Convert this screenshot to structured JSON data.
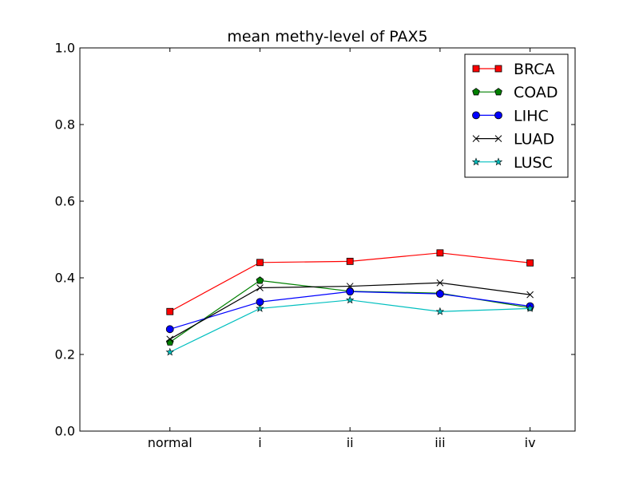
{
  "chart_data": {
    "type": "line",
    "title": "mean methy-level of PAX5",
    "xlabel": "",
    "ylabel": "",
    "categories": [
      "normal",
      "i",
      "ii",
      "iii",
      "iv"
    ],
    "x_range": [
      -1,
      4.5
    ],
    "ylim": [
      0.0,
      1.0
    ],
    "yticks": [
      "0.0",
      "0.2",
      "0.4",
      "0.6",
      "0.8",
      "1.0"
    ],
    "grid": false,
    "legend_position": "top-right",
    "series": [
      {
        "name": "BRCA",
        "color": "#ff0000",
        "marker": "square",
        "values": [
          0.312,
          0.44,
          0.443,
          0.465,
          0.439
        ]
      },
      {
        "name": "COAD",
        "color": "#008000",
        "marker": "pentagon",
        "values": [
          0.232,
          0.393,
          0.365,
          0.36,
          0.322
        ]
      },
      {
        "name": "LIHC",
        "color": "#0000ff",
        "marker": "circle",
        "values": [
          0.266,
          0.337,
          0.364,
          0.358,
          0.326
        ]
      },
      {
        "name": "LUAD",
        "color": "#000000",
        "marker": "x",
        "values": [
          0.24,
          0.374,
          0.378,
          0.387,
          0.356
        ]
      },
      {
        "name": "LUSC",
        "color": "#00bfbf",
        "marker": "star",
        "values": [
          0.206,
          0.32,
          0.342,
          0.312,
          0.32
        ]
      }
    ]
  }
}
